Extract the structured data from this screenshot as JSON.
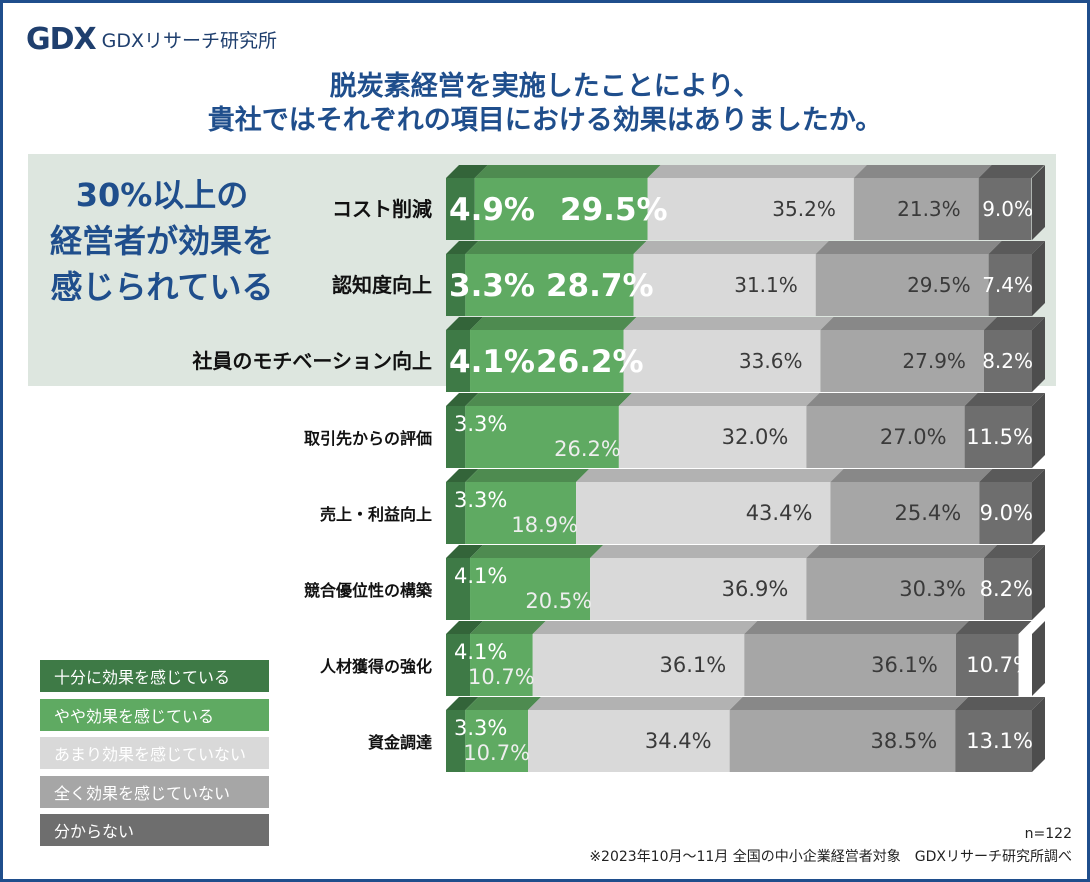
{
  "header": {
    "logo_mark": "GDX",
    "logo_text": "GDXリサーチ研究所",
    "title_line1": "脱炭素経営を実施したことにより、",
    "title_line2": "貴社ではそれぞれの項目における効果はありましたか。"
  },
  "callout": {
    "line1": "30%以上の",
    "line2": "経営者が効果を",
    "line3": "感じられている"
  },
  "colors": {
    "s1": "#3e7a46",
    "s2": "#5faa62",
    "s3": "#d9d9d9",
    "s4": "#a6a6a6",
    "s5": "#6e6e6e",
    "highlight_bg": "#dde6df",
    "title": "#1f4e8c"
  },
  "chart_data": {
    "type": "bar",
    "orientation": "horizontal-stacked-100",
    "categories": [
      "コスト削減",
      "認知度向上",
      "社員のモチベーション向上",
      "取引先からの評価",
      "売上・利益向上",
      "競合優位性の構築",
      "人材獲得の強化",
      "資金調達"
    ],
    "highlighted_count": 3,
    "series": [
      {
        "name": "十分に効果を感じている",
        "values": [
          4.9,
          3.3,
          4.1,
          3.3,
          3.3,
          4.1,
          4.1,
          3.3
        ]
      },
      {
        "name": "やや効果を感じている",
        "values": [
          29.5,
          28.7,
          26.2,
          26.2,
          18.9,
          20.5,
          10.7,
          10.7
        ]
      },
      {
        "name": "あまり効果を感じていない",
        "values": [
          35.2,
          31.1,
          33.6,
          32.0,
          43.4,
          36.9,
          36.1,
          34.4
        ]
      },
      {
        "name": "全く効果を感じていない",
        "values": [
          21.3,
          29.5,
          27.9,
          27.0,
          25.4,
          30.3,
          36.1,
          38.5
        ]
      },
      {
        "name": "分からない",
        "values": [
          9.0,
          7.4,
          8.2,
          11.5,
          9.0,
          8.2,
          10.7,
          13.1
        ]
      }
    ],
    "value_suffix": "%",
    "xlim": [
      0,
      100
    ]
  },
  "footer": {
    "n": "n=122",
    "source": "※2023年10月～11月 全国の中小企業経営者対象　GDXリサーチ研究所調べ"
  }
}
